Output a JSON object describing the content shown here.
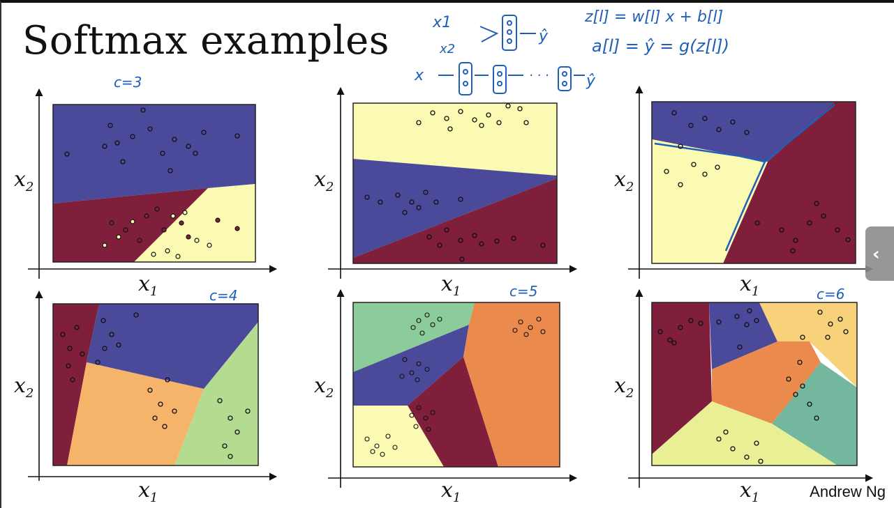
{
  "slide": {
    "title": "Softmax examples",
    "attribution": "Andrew Ng"
  },
  "annotations": {
    "c3": "c=3",
    "c4": "c=4",
    "c5": "c=5",
    "c6": "c=6",
    "eq1": "z[l] = w[l] x + b[l]",
    "eq2": "a[l] = ŷ = g(z[l])",
    "net1_in": "x1",
    "net1_in2": "x2",
    "net1_out": "ŷ",
    "net2_in": "x",
    "net2_out": "ŷ",
    "net2_dots": "· · ·"
  },
  "axes": {
    "x_label": "x",
    "x_sub": "1",
    "y_label": "x",
    "y_sub": "2"
  },
  "colors": {
    "blue": "#4b4a9a",
    "maroon": "#7f1f3b",
    "yellow": "#fafab2",
    "peach": "#f6b36a",
    "green": "#b4dc91",
    "teal": "#72b79e",
    "lightgreen": "#8ccb9a",
    "orange": "#ea8a4c",
    "gold": "#f7d27a",
    "lime": "#e8ef94",
    "ink": "#1f5fb8"
  },
  "panels": [
    {
      "name": "panel-c3-top-left",
      "classes": 3
    },
    {
      "name": "panel-c3-top-center",
      "classes": 3
    },
    {
      "name": "panel-c3-top-right",
      "classes": 3
    },
    {
      "name": "panel-c4",
      "classes": 4
    },
    {
      "name": "panel-c5",
      "classes": 5
    },
    {
      "name": "panel-c6",
      "classes": 6
    }
  ]
}
